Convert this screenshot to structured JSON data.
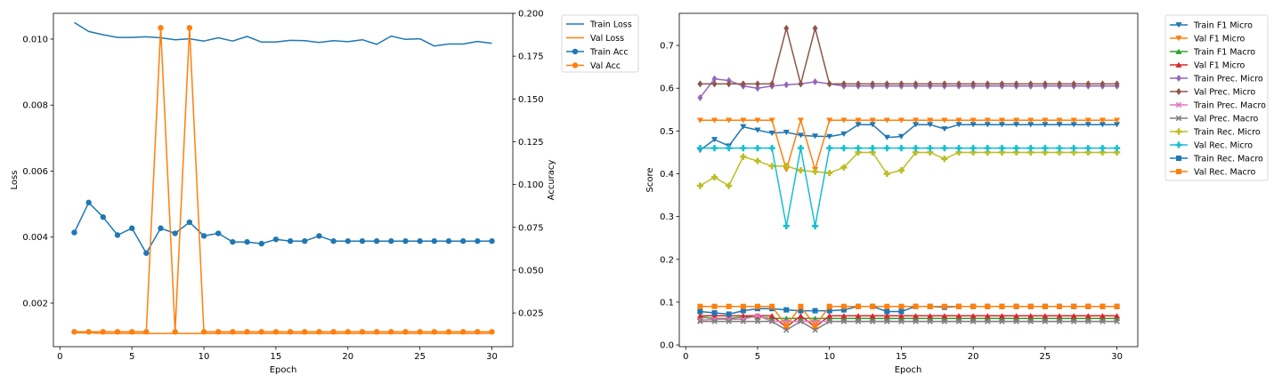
{
  "chart_data": [
    {
      "type": "line",
      "xlabel": "Epoch",
      "ylabel": "Loss",
      "y2label": "Accuracy",
      "xlim": [
        -0.45,
        31.45
      ],
      "ylim": [
        0.00068,
        0.01078
      ],
      "y2lim": [
        0.00533,
        0.2
      ],
      "xticks": [
        0,
        5,
        10,
        15,
        20,
        25,
        30
      ],
      "yticks": [
        0.002,
        0.004,
        0.006,
        0.008,
        0.01
      ],
      "yticklabels": [
        "0.002",
        "0.004",
        "0.006",
        "0.008",
        "0.010"
      ],
      "y2ticks": [
        0.025,
        0.05,
        0.075,
        0.1,
        0.125,
        0.15,
        0.175,
        0.2
      ],
      "y2ticklabels": [
        "0.025",
        "0.050",
        "0.075",
        "0.100",
        "0.125",
        "0.150",
        "0.175",
        "0.200"
      ],
      "legend_position": "outside-top-right",
      "x": [
        1,
        2,
        3,
        4,
        5,
        6,
        7,
        8,
        9,
        10,
        11,
        12,
        13,
        14,
        15,
        16,
        17,
        18,
        19,
        20,
        21,
        22,
        23,
        24,
        25,
        26,
        27,
        28,
        29,
        30
      ],
      "series": [
        {
          "name": "Train Loss",
          "axis": "left",
          "color": "#1f77b4",
          "marker": "none",
          "values": [
            0.0105,
            0.01023,
            0.01013,
            0.01005,
            0.01005,
            0.01007,
            0.01004,
            0.00998,
            0.01001,
            0.00994,
            0.01004,
            0.00994,
            0.01008,
            0.00991,
            0.00991,
            0.00996,
            0.00995,
            0.0099,
            0.00995,
            0.00992,
            0.00998,
            0.00984,
            0.01009,
            0.00999,
            0.01001,
            0.00979,
            0.00985,
            0.00985,
            0.00993,
            0.00987
          ]
        },
        {
          "name": "Val Loss",
          "axis": "left",
          "color": "#ff7f0e",
          "marker": "none",
          "values": [
            0.0011,
            0.0011,
            0.00108,
            0.00108,
            0.00108,
            0.00108,
            0.00108,
            0.00108,
            0.00108,
            0.00108,
            0.00108,
            0.00108,
            0.00108,
            0.00108,
            0.00108,
            0.00108,
            0.00108,
            0.00108,
            0.00108,
            0.00108,
            0.00108,
            0.00108,
            0.00108,
            0.00108,
            0.00108,
            0.00108,
            0.00108,
            0.00108,
            0.00108,
            0.00108
          ]
        },
        {
          "name": "Train Acc",
          "axis": "right",
          "color": "#1f77b4",
          "marker": "circle",
          "values": [
            0.072,
            0.0895,
            0.081,
            0.0705,
            0.0745,
            0.06,
            0.0745,
            0.0715,
            0.078,
            0.07,
            0.0715,
            0.0665,
            0.0665,
            0.0655,
            0.068,
            0.067,
            0.067,
            0.07,
            0.067,
            0.067,
            0.067,
            0.067,
            0.067,
            0.067,
            0.067,
            0.067,
            0.067,
            0.067,
            0.067,
            0.067
          ]
        },
        {
          "name": "Val Acc",
          "axis": "right",
          "color": "#ff7f0e",
          "marker": "circle",
          "values": [
            0.014,
            0.014,
            0.014,
            0.014,
            0.014,
            0.014,
            0.1915,
            0.014,
            0.1915,
            0.014,
            0.014,
            0.014,
            0.014,
            0.014,
            0.014,
            0.014,
            0.014,
            0.014,
            0.014,
            0.014,
            0.014,
            0.014,
            0.014,
            0.014,
            0.014,
            0.014,
            0.014,
            0.014,
            0.014,
            0.014
          ]
        }
      ]
    },
    {
      "type": "line",
      "xlabel": "Epoch",
      "ylabel": "Score",
      "xlim": [
        -0.45,
        31.45
      ],
      "ylim": [
        -0.004,
        0.775
      ],
      "xticks": [
        0,
        5,
        10,
        15,
        20,
        25,
        30
      ],
      "yticks": [
        0.0,
        0.1,
        0.2,
        0.3,
        0.4,
        0.5,
        0.6,
        0.7
      ],
      "yticklabels": [
        "0.0",
        "0.1",
        "0.2",
        "0.3",
        "0.4",
        "0.5",
        "0.6",
        "0.7"
      ],
      "legend_position": "outside-top-right",
      "x": [
        1,
        2,
        3,
        4,
        5,
        6,
        7,
        8,
        9,
        10,
        11,
        12,
        13,
        14,
        15,
        16,
        17,
        18,
        19,
        20,
        21,
        22,
        23,
        24,
        25,
        26,
        27,
        28,
        29,
        30
      ],
      "series": [
        {
          "name": "Train F1 Micro",
          "color": "#1f77b4",
          "marker": "tri_down",
          "values": [
            0.455,
            0.48,
            0.465,
            0.51,
            0.502,
            0.495,
            0.497,
            0.49,
            0.488,
            0.487,
            0.493,
            0.515,
            0.515,
            0.485,
            0.487,
            0.515,
            0.515,
            0.505,
            0.515,
            0.515,
            0.515,
            0.515,
            0.515,
            0.515,
            0.515,
            0.515,
            0.515,
            0.515,
            0.515,
            0.515
          ]
        },
        {
          "name": "Val F1 Micro",
          "color": "#ff7f0e",
          "marker": "tri_down",
          "values": [
            0.525,
            0.525,
            0.525,
            0.525,
            0.525,
            0.525,
            0.41,
            0.525,
            0.41,
            0.525,
            0.525,
            0.525,
            0.525,
            0.525,
            0.525,
            0.525,
            0.525,
            0.525,
            0.525,
            0.525,
            0.525,
            0.525,
            0.525,
            0.525,
            0.525,
            0.525,
            0.525,
            0.525,
            0.525,
            0.525
          ]
        },
        {
          "name": "Train F1 Macro",
          "color": "#2ca02c",
          "marker": "tri_up",
          "values": [
            0.065,
            0.062,
            0.062,
            0.065,
            0.065,
            0.062,
            0.062,
            0.062,
            0.062,
            0.062,
            0.062,
            0.062,
            0.062,
            0.062,
            0.062,
            0.062,
            0.062,
            0.062,
            0.062,
            0.062,
            0.062,
            0.062,
            0.062,
            0.062,
            0.062,
            0.062,
            0.062,
            0.062,
            0.062,
            0.062
          ]
        },
        {
          "name": "Val F1 Micro",
          "color": "#d62728",
          "marker": "tri_up",
          "values": [
            0.068,
            0.068,
            0.068,
            0.068,
            0.068,
            0.068,
            0.042,
            0.068,
            0.042,
            0.068,
            0.068,
            0.068,
            0.068,
            0.068,
            0.068,
            0.068,
            0.068,
            0.068,
            0.068,
            0.068,
            0.068,
            0.068,
            0.068,
            0.068,
            0.068,
            0.068,
            0.068,
            0.068,
            0.068,
            0.068
          ]
        },
        {
          "name": "Train Prec. Micro",
          "color": "#9467bd",
          "marker": "diamond",
          "values": [
            0.578,
            0.622,
            0.618,
            0.605,
            0.6,
            0.605,
            0.608,
            0.61,
            0.615,
            0.61,
            0.605,
            0.605,
            0.605,
            0.605,
            0.605,
            0.605,
            0.605,
            0.605,
            0.605,
            0.605,
            0.605,
            0.605,
            0.605,
            0.605,
            0.605,
            0.605,
            0.605,
            0.605,
            0.605,
            0.605
          ]
        },
        {
          "name": "Val Prec. Micro",
          "color": "#8c564b",
          "marker": "diamond",
          "values": [
            0.61,
            0.61,
            0.61,
            0.61,
            0.61,
            0.61,
            0.74,
            0.61,
            0.74,
            0.61,
            0.61,
            0.61,
            0.61,
            0.61,
            0.61,
            0.61,
            0.61,
            0.61,
            0.61,
            0.61,
            0.61,
            0.61,
            0.61,
            0.61,
            0.61,
            0.61,
            0.61,
            0.61,
            0.61,
            0.61
          ]
        },
        {
          "name": "Train Prec. Macro",
          "color": "#e377c2",
          "marker": "x",
          "values": [
            0.058,
            0.06,
            0.06,
            0.06,
            0.068,
            0.055,
            0.055,
            0.055,
            0.055,
            0.055,
            0.055,
            0.055,
            0.055,
            0.055,
            0.055,
            0.055,
            0.055,
            0.055,
            0.055,
            0.055,
            0.055,
            0.055,
            0.055,
            0.055,
            0.055,
            0.055,
            0.055,
            0.055,
            0.055,
            0.055
          ]
        },
        {
          "name": "Val Prec. Macro",
          "color": "#7f7f7f",
          "marker": "x",
          "values": [
            0.055,
            0.055,
            0.055,
            0.055,
            0.055,
            0.055,
            0.035,
            0.055,
            0.035,
            0.055,
            0.055,
            0.055,
            0.055,
            0.055,
            0.055,
            0.055,
            0.055,
            0.055,
            0.055,
            0.055,
            0.055,
            0.055,
            0.055,
            0.055,
            0.055,
            0.055,
            0.055,
            0.055,
            0.055,
            0.055
          ]
        },
        {
          "name": "Train Rec. Micro",
          "color": "#bcbd22",
          "marker": "plus",
          "values": [
            0.372,
            0.392,
            0.372,
            0.44,
            0.43,
            0.418,
            0.418,
            0.408,
            0.405,
            0.402,
            0.415,
            0.45,
            0.45,
            0.4,
            0.408,
            0.45,
            0.45,
            0.435,
            0.45,
            0.45,
            0.45,
            0.45,
            0.45,
            0.45,
            0.45,
            0.45,
            0.45,
            0.45,
            0.45,
            0.45
          ]
        },
        {
          "name": "Val Rec. Micro",
          "color": "#17becf",
          "marker": "plus",
          "values": [
            0.46,
            0.46,
            0.46,
            0.46,
            0.46,
            0.46,
            0.278,
            0.46,
            0.278,
            0.46,
            0.46,
            0.46,
            0.46,
            0.46,
            0.46,
            0.46,
            0.46,
            0.46,
            0.46,
            0.46,
            0.46,
            0.46,
            0.46,
            0.46,
            0.46,
            0.46,
            0.46,
            0.46,
            0.46,
            0.46
          ]
        },
        {
          "name": "Train Rec. Macro",
          "color": "#1f77b4",
          "marker": "square",
          "values": [
            0.078,
            0.075,
            0.072,
            0.08,
            0.085,
            0.085,
            0.082,
            0.08,
            0.08,
            0.08,
            0.082,
            0.09,
            0.09,
            0.078,
            0.078,
            0.09,
            0.09,
            0.088,
            0.09,
            0.09,
            0.09,
            0.09,
            0.09,
            0.09,
            0.09,
            0.09,
            0.09,
            0.09,
            0.09,
            0.09
          ]
        },
        {
          "name": "Val Rec. Macro",
          "color": "#ff7f0e",
          "marker": "square",
          "values": [
            0.09,
            0.09,
            0.09,
            0.09,
            0.09,
            0.09,
            0.045,
            0.09,
            0.045,
            0.09,
            0.09,
            0.09,
            0.09,
            0.09,
            0.09,
            0.09,
            0.09,
            0.09,
            0.09,
            0.09,
            0.09,
            0.09,
            0.09,
            0.09,
            0.09,
            0.09,
            0.09,
            0.09,
            0.09,
            0.09
          ]
        }
      ]
    }
  ]
}
